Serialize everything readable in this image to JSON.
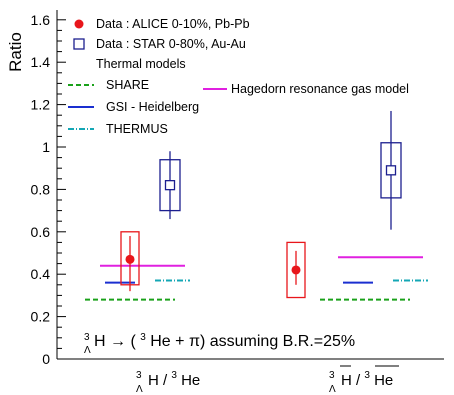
{
  "chart_data": {
    "type": "scatter",
    "ylabel": "Ratio",
    "ylim": [
      0,
      1.65
    ],
    "yticks": [
      "0",
      "0.2",
      "0.4",
      "0.6",
      "0.8",
      "1",
      "1.2",
      "1.4",
      "1.6"
    ],
    "categories": [
      {
        "main": "H / ",
        "sup": "3",
        "sub": "Λ",
        "den_sup": "3",
        "den": "He"
      },
      {
        "main": "H / ",
        "sup": "3",
        "sub": "Λ",
        "den_sup": "3",
        "den": "He",
        "bar": true
      }
    ],
    "legend": {
      "alice": "Data : ALICE 0-10%, Pb-Pb",
      "star": "Data : STAR  0-80%, Au-Au",
      "thermal_header": "Thermal models",
      "share": "SHARE",
      "gsi": "GSI - Heidelberg",
      "thermus": "THERMUS",
      "hagedorn": "Hagedorn resonance gas model"
    },
    "colors": {
      "alice": "#e8161b",
      "star": "#1c1f8f",
      "share": "#1aa11a",
      "gsi": "#1a2fd0",
      "thermus": "#14a7b5",
      "hagedorn": "#e020e0"
    },
    "series": [
      {
        "name": "Data : ALICE 0-10%, Pb-Pb",
        "marker": "filled-circle",
        "points": [
          {
            "category": 0,
            "y": 0.47,
            "err_low": 0.32,
            "err_high": 0.58,
            "sys_low": 0.35,
            "sys_high": 0.6
          },
          {
            "category": 1,
            "y": 0.42,
            "err_low": 0.35,
            "err_high": 0.51,
            "sys_low": 0.29,
            "sys_high": 0.55
          }
        ]
      },
      {
        "name": "Data : STAR  0-80%, Au-Au",
        "marker": "open-square",
        "points": [
          {
            "category": 0,
            "y": 0.82,
            "err_low": 0.66,
            "err_high": 0.98,
            "sys_low": 0.7,
            "sys_high": 0.94
          },
          {
            "category": 1,
            "y": 0.89,
            "err_low": 0.61,
            "err_high": 1.17,
            "sys_low": 0.76,
            "sys_high": 1.02
          }
        ]
      }
    ],
    "models": [
      {
        "name": "SHARE",
        "style": "dashed",
        "values": [
          0.28,
          0.28
        ]
      },
      {
        "name": "GSI - Heidelberg",
        "style": "solid",
        "values": [
          0.36,
          0.36
        ]
      },
      {
        "name": "THERMUS",
        "style": "dashdot",
        "values": [
          0.37,
          0.37
        ]
      },
      {
        "name": "Hagedorn resonance gas model",
        "style": "solid",
        "values": [
          0.44,
          0.48
        ]
      }
    ],
    "annotation": {
      "sup1": "3",
      "sub1": "Λ",
      "h": "H → (",
      "sup2": "3",
      "rest": "He + π) assuming B.R.=25%"
    }
  }
}
